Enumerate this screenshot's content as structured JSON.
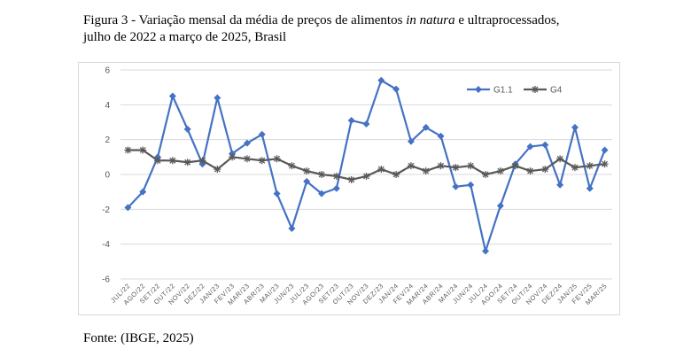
{
  "caption": {
    "prefix": "Figura 3 - Variação mensal da média de preços de alimentos ",
    "italic": "in natura",
    "suffix": " e ultraprocessados,",
    "line2": "julho de 2022 a março de 2025, Brasil"
  },
  "source": "Fonte: (IBGE, 2025)",
  "chart_data": {
    "type": "line",
    "categories": [
      "JUL/22",
      "AGO/22",
      "SET/22",
      "OUT/22",
      "NOV/22",
      "DEZ/22",
      "JAN/23",
      "FEV/23",
      "MAR/23",
      "ABR/23",
      "MAI/23",
      "JUN/23",
      "JUL/23",
      "AGO/23",
      "SET/23",
      "OUT/23",
      "NOV/23",
      "DEZ/23",
      "JAN/24",
      "FEV/24",
      "MAR/24",
      "ABR/24",
      "MAI/24",
      "JUN/24",
      "JUL/24",
      "AGO/24",
      "SET/24",
      "OUT/24",
      "NOV/24",
      "DEZ/24",
      "JAN/25",
      "FEV/25",
      "MAR/25"
    ],
    "yticks": [
      -6,
      -4,
      -2,
      0,
      2,
      4,
      6
    ],
    "ylim": [
      -6,
      6
    ],
    "grid": true,
    "legend_position": "top-right",
    "series": [
      {
        "name": "G1.1",
        "color": "#4472c4",
        "marker": "diamond",
        "values": [
          -1.9,
          -1.0,
          1.0,
          4.5,
          2.6,
          0.6,
          4.4,
          1.2,
          1.8,
          2.3,
          -1.1,
          -3.1,
          -0.4,
          -1.1,
          -0.8,
          3.1,
          2.9,
          5.4,
          4.9,
          1.9,
          2.7,
          2.2,
          -0.7,
          -0.6,
          -4.4,
          -1.8,
          0.6,
          1.6,
          1.7,
          -0.6,
          2.7,
          -0.8,
          1.4
        ]
      },
      {
        "name": "G4",
        "color": "#595959",
        "marker": "star",
        "values": [
          1.4,
          1.4,
          0.8,
          0.8,
          0.7,
          0.8,
          0.3,
          1.0,
          0.9,
          0.8,
          0.9,
          0.5,
          0.2,
          0.0,
          -0.1,
          -0.3,
          -0.1,
          0.3,
          0.0,
          0.5,
          0.2,
          0.5,
          0.4,
          0.5,
          0.0,
          0.2,
          0.5,
          0.2,
          0.3,
          0.9,
          0.4,
          0.5,
          0.6
        ]
      }
    ]
  }
}
